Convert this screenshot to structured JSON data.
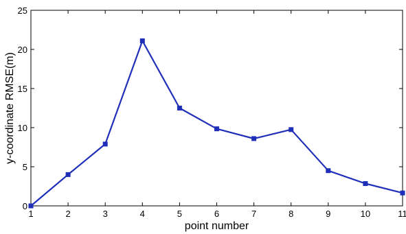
{
  "chart_data": {
    "type": "line",
    "title": "",
    "xlabel": "point number",
    "ylabel": "y-coordinate RMSE(m)",
    "x": [
      1,
      2,
      3,
      4,
      5,
      6,
      7,
      8,
      9,
      10,
      11
    ],
    "series": [
      {
        "values": [
          0,
          4.0,
          7.9,
          21.1,
          12.5,
          9.85,
          8.6,
          9.75,
          4.5,
          2.85,
          1.65
        ],
        "color": "#1f2fb8"
      }
    ],
    "xlim": [
      1,
      11
    ],
    "ylim": [
      0,
      25
    ],
    "xticks": [
      "1",
      "2",
      "3",
      "4",
      "5",
      "6",
      "7",
      "8",
      "9",
      "10",
      "11"
    ],
    "yticks": [
      "0",
      "5",
      "10",
      "15",
      "20",
      "25"
    ],
    "grid": false,
    "legend": "none"
  }
}
